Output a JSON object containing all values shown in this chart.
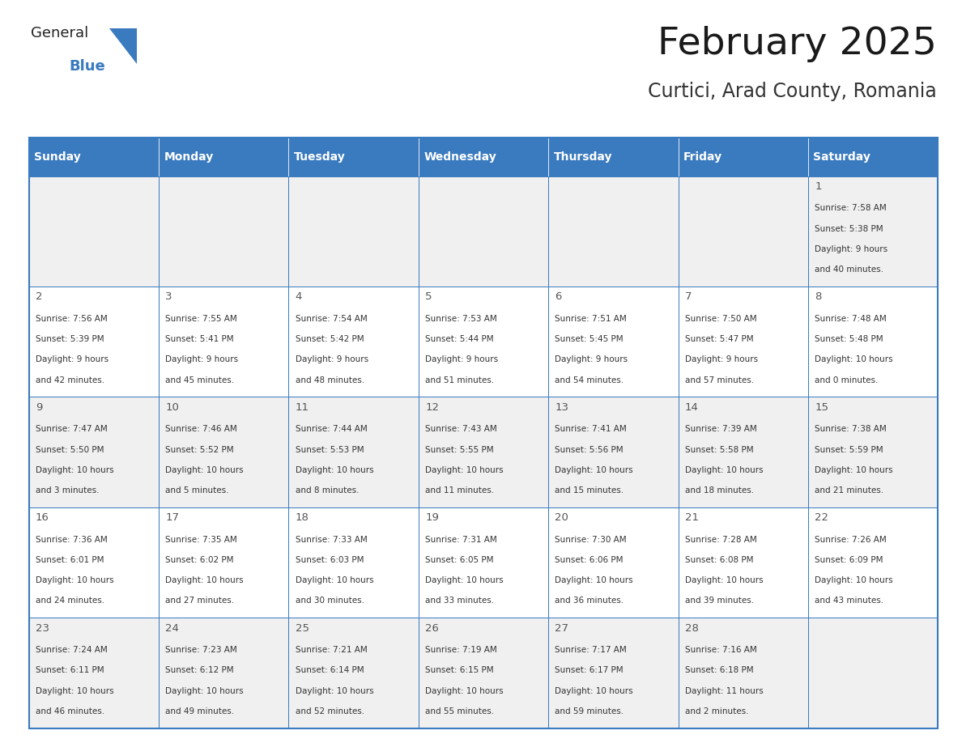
{
  "title": "February 2025",
  "subtitle": "Curtici, Arad County, Romania",
  "header_color": "#3a7abf",
  "header_text_color": "#ffffff",
  "cell_bg_even": "#f0f0f0",
  "cell_bg_odd": "#ffffff",
  "border_color": "#3a7abf",
  "text_color": "#333333",
  "day_number_color": "#555555",
  "days_of_week": [
    "Sunday",
    "Monday",
    "Tuesday",
    "Wednesday",
    "Thursday",
    "Friday",
    "Saturday"
  ],
  "weeks": [
    [
      null,
      null,
      null,
      null,
      null,
      null,
      {
        "day": 1,
        "sunrise": "7:58 AM",
        "sunset": "5:38 PM",
        "daylight": "9 hours",
        "daylight2": "and 40 minutes."
      }
    ],
    [
      {
        "day": 2,
        "sunrise": "7:56 AM",
        "sunset": "5:39 PM",
        "daylight": "9 hours",
        "daylight2": "and 42 minutes."
      },
      {
        "day": 3,
        "sunrise": "7:55 AM",
        "sunset": "5:41 PM",
        "daylight": "9 hours",
        "daylight2": "and 45 minutes."
      },
      {
        "day": 4,
        "sunrise": "7:54 AM",
        "sunset": "5:42 PM",
        "daylight": "9 hours",
        "daylight2": "and 48 minutes."
      },
      {
        "day": 5,
        "sunrise": "7:53 AM",
        "sunset": "5:44 PM",
        "daylight": "9 hours",
        "daylight2": "and 51 minutes."
      },
      {
        "day": 6,
        "sunrise": "7:51 AM",
        "sunset": "5:45 PM",
        "daylight": "9 hours",
        "daylight2": "and 54 minutes."
      },
      {
        "day": 7,
        "sunrise": "7:50 AM",
        "sunset": "5:47 PM",
        "daylight": "9 hours",
        "daylight2": "and 57 minutes."
      },
      {
        "day": 8,
        "sunrise": "7:48 AM",
        "sunset": "5:48 PM",
        "daylight": "10 hours",
        "daylight2": "and 0 minutes."
      }
    ],
    [
      {
        "day": 9,
        "sunrise": "7:47 AM",
        "sunset": "5:50 PM",
        "daylight": "10 hours",
        "daylight2": "and 3 minutes."
      },
      {
        "day": 10,
        "sunrise": "7:46 AM",
        "sunset": "5:52 PM",
        "daylight": "10 hours",
        "daylight2": "and 5 minutes."
      },
      {
        "day": 11,
        "sunrise": "7:44 AM",
        "sunset": "5:53 PM",
        "daylight": "10 hours",
        "daylight2": "and 8 minutes."
      },
      {
        "day": 12,
        "sunrise": "7:43 AM",
        "sunset": "5:55 PM",
        "daylight": "10 hours",
        "daylight2": "and 11 minutes."
      },
      {
        "day": 13,
        "sunrise": "7:41 AM",
        "sunset": "5:56 PM",
        "daylight": "10 hours",
        "daylight2": "and 15 minutes."
      },
      {
        "day": 14,
        "sunrise": "7:39 AM",
        "sunset": "5:58 PM",
        "daylight": "10 hours",
        "daylight2": "and 18 minutes."
      },
      {
        "day": 15,
        "sunrise": "7:38 AM",
        "sunset": "5:59 PM",
        "daylight": "10 hours",
        "daylight2": "and 21 minutes."
      }
    ],
    [
      {
        "day": 16,
        "sunrise": "7:36 AM",
        "sunset": "6:01 PM",
        "daylight": "10 hours",
        "daylight2": "and 24 minutes."
      },
      {
        "day": 17,
        "sunrise": "7:35 AM",
        "sunset": "6:02 PM",
        "daylight": "10 hours",
        "daylight2": "and 27 minutes."
      },
      {
        "day": 18,
        "sunrise": "7:33 AM",
        "sunset": "6:03 PM",
        "daylight": "10 hours",
        "daylight2": "and 30 minutes."
      },
      {
        "day": 19,
        "sunrise": "7:31 AM",
        "sunset": "6:05 PM",
        "daylight": "10 hours",
        "daylight2": "and 33 minutes."
      },
      {
        "day": 20,
        "sunrise": "7:30 AM",
        "sunset": "6:06 PM",
        "daylight": "10 hours",
        "daylight2": "and 36 minutes."
      },
      {
        "day": 21,
        "sunrise": "7:28 AM",
        "sunset": "6:08 PM",
        "daylight": "10 hours",
        "daylight2": "and 39 minutes."
      },
      {
        "day": 22,
        "sunrise": "7:26 AM",
        "sunset": "6:09 PM",
        "daylight": "10 hours",
        "daylight2": "and 43 minutes."
      }
    ],
    [
      {
        "day": 23,
        "sunrise": "7:24 AM",
        "sunset": "6:11 PM",
        "daylight": "10 hours",
        "daylight2": "and 46 minutes."
      },
      {
        "day": 24,
        "sunrise": "7:23 AM",
        "sunset": "6:12 PM",
        "daylight": "10 hours",
        "daylight2": "and 49 minutes."
      },
      {
        "day": 25,
        "sunrise": "7:21 AM",
        "sunset": "6:14 PM",
        "daylight": "10 hours",
        "daylight2": "and 52 minutes."
      },
      {
        "day": 26,
        "sunrise": "7:19 AM",
        "sunset": "6:15 PM",
        "daylight": "10 hours",
        "daylight2": "and 55 minutes."
      },
      {
        "day": 27,
        "sunrise": "7:17 AM",
        "sunset": "6:17 PM",
        "daylight": "10 hours",
        "daylight2": "and 59 minutes."
      },
      {
        "day": 28,
        "sunrise": "7:16 AM",
        "sunset": "6:18 PM",
        "daylight": "11 hours",
        "daylight2": "and 2 minutes."
      },
      null
    ]
  ],
  "logo_text_general": "General",
  "logo_text_blue": "Blue",
  "logo_color_general": "#222222",
  "logo_color_blue": "#3a7abf",
  "logo_triangle_color": "#3a7abf",
  "figsize": [
    11.88,
    9.18
  ],
  "dpi": 100
}
